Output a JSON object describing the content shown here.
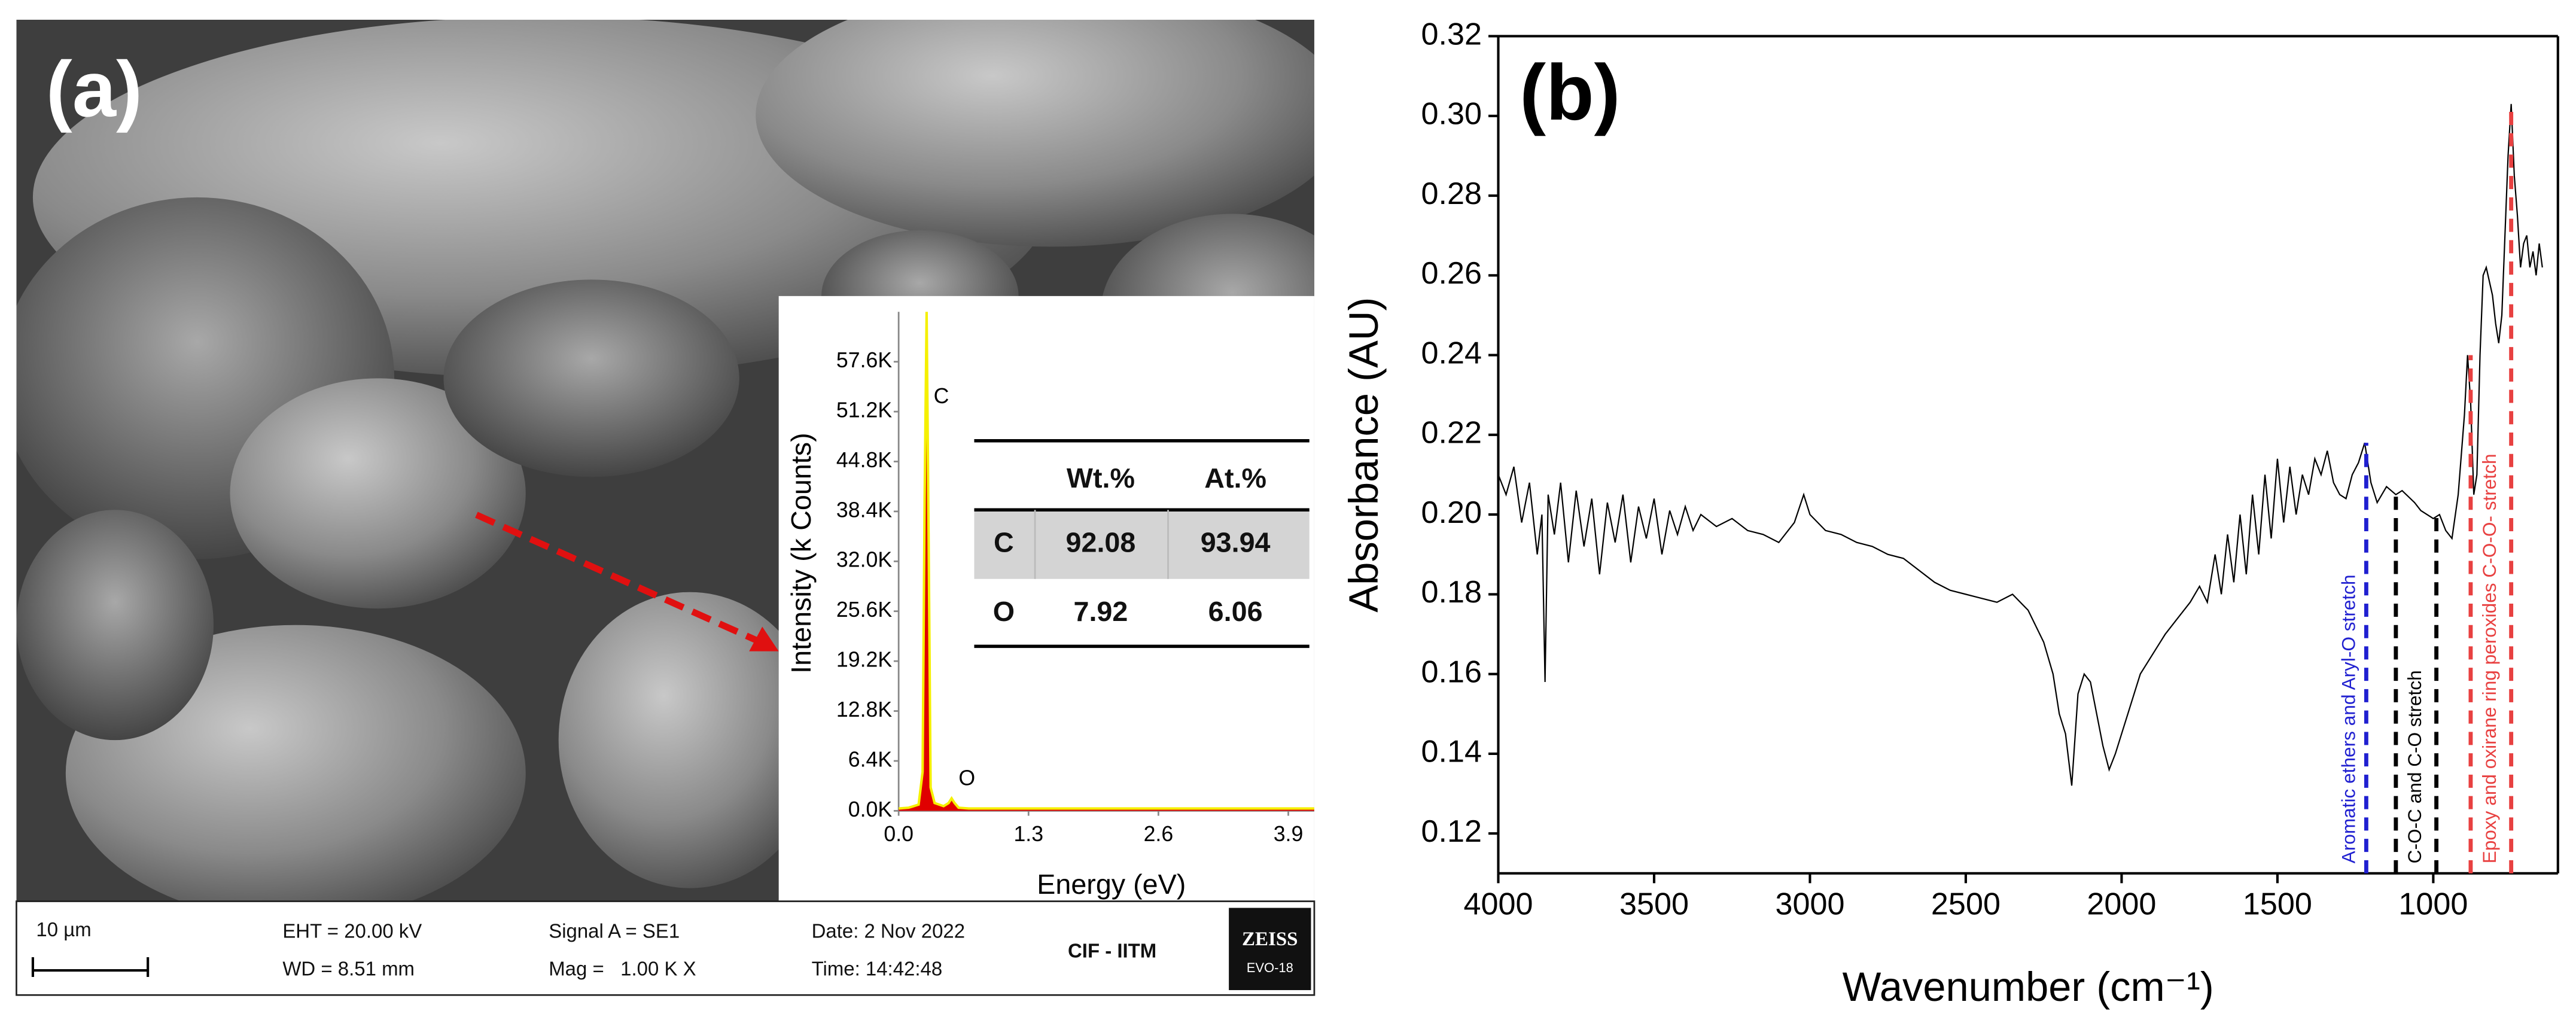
{
  "panel_labels": [
    "(a)",
    "(b)"
  ],
  "sem_info": {
    "scale_bar": "10 µm",
    "eht": "EHT = 20.00 kV",
    "wd": "WD = 8.51 mm",
    "signal": "Signal A = SE1",
    "mag": "Mag =   1.00 K X",
    "date": "Date: 2 Nov 2022",
    "time": "Time: 14:42:48",
    "facility": "CIF - IITM",
    "logo": "ZEISS",
    "model": "EVO-18"
  },
  "table": {
    "header": [
      "Wt.%",
      "At.%"
    ],
    "rows": [
      [
        "C",
        "92.08",
        "93.94"
      ],
      [
        "O",
        "7.92",
        "6.06"
      ]
    ]
  },
  "chart_data": [
    {
      "type": "area",
      "x_label": "Energy (eV)",
      "y_label": "Intensity (k Counts)",
      "x": [
        0,
        0.1,
        0.2,
        0.24,
        0.26,
        0.28,
        0.3,
        0.32,
        0.36,
        0.45,
        0.5,
        0.53,
        0.56,
        0.6,
        0.7,
        1,
        1.5,
        2,
        2.5,
        3,
        3.5,
        4,
        4.16
      ],
      "values": [
        0.3,
        0.4,
        0.8,
        5,
        40,
        64,
        35,
        3,
        1,
        0.6,
        1,
        1.6,
        1,
        0.4,
        0.3,
        0.3,
        0.3,
        0.3,
        0.3,
        0.3,
        0.3,
        0.3,
        0.3
      ],
      "color": "#e00000",
      "line_color": "#f5f000",
      "xlim": [
        0,
        4.16
      ],
      "ylim": [
        0,
        64
      ],
      "xticks": [
        {
          "value": 0,
          "label": "0.0"
        },
        1.3,
        2.6,
        3.9
      ],
      "yticks": [
        {
          "value": 0,
          "label": "0.0K"
        },
        {
          "value": 6.4,
          "label": "6.4K"
        },
        {
          "value": 12.8,
          "label": "12.8K"
        },
        {
          "value": 19.2,
          "label": "19.2K"
        },
        {
          "value": 25.6,
          "label": "25.6K"
        },
        {
          "value": 32,
          "label": "32.0K"
        },
        {
          "value": 38.4,
          "label": "38.4K"
        },
        {
          "value": 44.8,
          "label": "44.8K"
        },
        {
          "value": 51.2,
          "label": "51.2K"
        },
        {
          "value": 57.6,
          "label": "57.6K"
        }
      ],
      "annotations": [
        {
          "text": "C",
          "x": 0.35,
          "y": 53
        },
        {
          "text": "O",
          "x": 0.6,
          "y": 4
        }
      ]
    },
    {
      "type": "line",
      "x_label": "Wavenumber (cm⁻¹)",
      "y_label": "Absorbance (AU)",
      "color": "#000000",
      "x": [
        4000,
        3975,
        3950,
        3925,
        3900,
        3875,
        3860,
        3850,
        3840,
        3820,
        3800,
        3775,
        3750,
        3725,
        3700,
        3675,
        3650,
        3625,
        3600,
        3575,
        3550,
        3525,
        3500,
        3475,
        3450,
        3425,
        3400,
        3375,
        3350,
        3300,
        3250,
        3200,
        3150,
        3100,
        3050,
        3020,
        3000,
        2950,
        2900,
        2850,
        2800,
        2750,
        2700,
        2650,
        2600,
        2550,
        2500,
        2450,
        2400,
        2350,
        2300,
        2250,
        2220,
        2200,
        2180,
        2160,
        2140,
        2120,
        2100,
        2080,
        2060,
        2040,
        2020,
        2000,
        1980,
        1960,
        1940,
        1900,
        1860,
        1820,
        1780,
        1750,
        1725,
        1700,
        1680,
        1660,
        1640,
        1620,
        1600,
        1580,
        1560,
        1540,
        1520,
        1500,
        1480,
        1460,
        1440,
        1420,
        1400,
        1380,
        1360,
        1340,
        1320,
        1300,
        1280,
        1260,
        1240,
        1220,
        1200,
        1180,
        1150,
        1120,
        1100,
        1060,
        1040,
        1000,
        980,
        960,
        940,
        920,
        900,
        890,
        880,
        870,
        860,
        850,
        840,
        830,
        810,
        800,
        790,
        780,
        770,
        760,
        750,
        740,
        730,
        720,
        710,
        700,
        690,
        680,
        670,
        660,
        650
      ],
      "values": [
        0.21,
        0.205,
        0.212,
        0.198,
        0.208,
        0.19,
        0.2,
        0.158,
        0.205,
        0.195,
        0.208,
        0.188,
        0.206,
        0.192,
        0.204,
        0.185,
        0.203,
        0.193,
        0.205,
        0.188,
        0.202,
        0.194,
        0.204,
        0.19,
        0.201,
        0.195,
        0.202,
        0.196,
        0.2,
        0.197,
        0.199,
        0.196,
        0.195,
        0.193,
        0.198,
        0.205,
        0.2,
        0.196,
        0.195,
        0.193,
        0.192,
        0.19,
        0.189,
        0.186,
        0.183,
        0.181,
        0.18,
        0.179,
        0.178,
        0.18,
        0.176,
        0.168,
        0.16,
        0.15,
        0.145,
        0.132,
        0.155,
        0.16,
        0.158,
        0.15,
        0.142,
        0.136,
        0.14,
        0.145,
        0.15,
        0.155,
        0.16,
        0.165,
        0.17,
        0.174,
        0.178,
        0.182,
        0.178,
        0.19,
        0.18,
        0.195,
        0.183,
        0.2,
        0.185,
        0.205,
        0.19,
        0.21,
        0.194,
        0.214,
        0.198,
        0.212,
        0.2,
        0.21,
        0.205,
        0.214,
        0.21,
        0.216,
        0.208,
        0.205,
        0.204,
        0.21,
        0.213,
        0.218,
        0.208,
        0.203,
        0.207,
        0.205,
        0.206,
        0.203,
        0.201,
        0.199,
        0.2,
        0.196,
        0.194,
        0.205,
        0.225,
        0.24,
        0.228,
        0.205,
        0.21,
        0.24,
        0.26,
        0.262,
        0.255,
        0.248,
        0.243,
        0.25,
        0.27,
        0.29,
        0.303,
        0.285,
        0.275,
        0.262,
        0.268,
        0.27,
        0.262,
        0.266,
        0.26,
        0.268,
        0.262
      ],
      "xlim": [
        4000,
        600
      ],
      "ylim": [
        0.11,
        0.32
      ],
      "xticks": [
        4000,
        3500,
        3000,
        2500,
        2000,
        1500,
        1000
      ],
      "yticks": [
        0.12,
        0.14,
        0.16,
        0.18,
        {
          "value": 0.2,
          "label": "0.20"
        },
        0.22,
        0.24,
        0.26,
        0.28,
        {
          "value": 0.3,
          "label": "0.30"
        },
        0.32
      ],
      "bands": [
        {
          "label": "Aromatic ethers and Aryl-O stretch",
          "color": "#2020d0",
          "x": [
            1215
          ],
          "ymax": [
            0.218
          ]
        },
        {
          "label": "C-O-C and C-O stretch",
          "color": "#000000",
          "x": [
            1120,
            990
          ],
          "ymax": [
            0.205,
            0.2
          ]
        },
        {
          "label": "Epoxy and oxirane ring peroxides C-O-O- stretch",
          "color": "#e84040",
          "x": [
            880,
            750
          ],
          "ymax": [
            0.24,
            0.303
          ]
        }
      ]
    }
  ]
}
